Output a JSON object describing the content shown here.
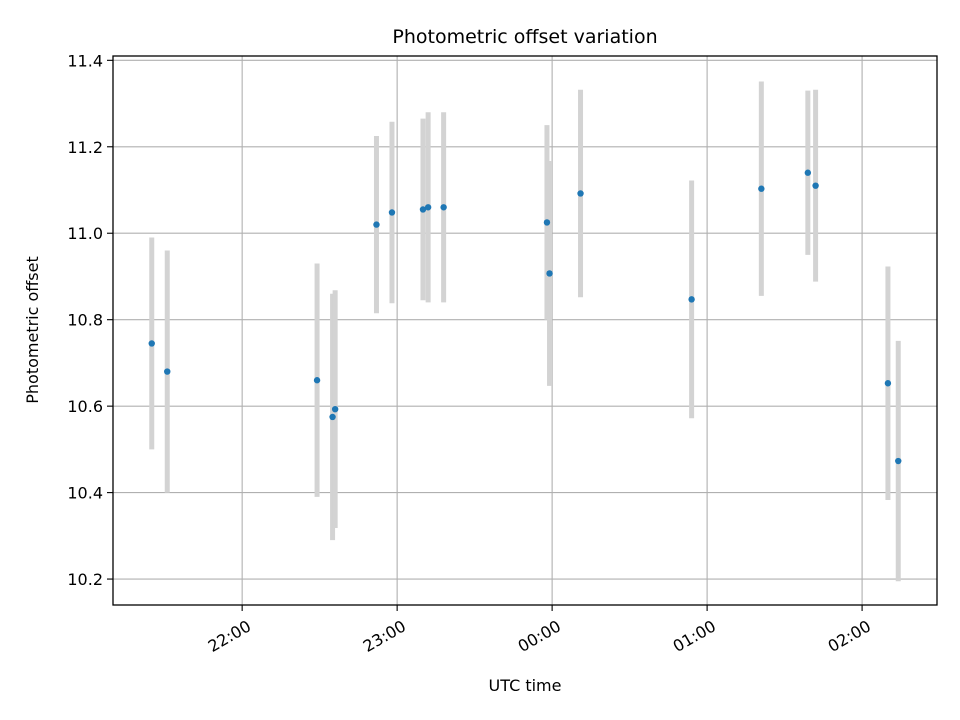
{
  "chart_data": {
    "type": "scatter",
    "title": "Photometric offset variation",
    "xlabel": "UTC time",
    "ylabel": "Photometric offset",
    "grid": true,
    "x_axis": {
      "range": [
        "21:10",
        "02:29"
      ],
      "ticks": [
        "22:00",
        "23:00",
        "00:00",
        "01:00",
        "02:00"
      ]
    },
    "y_axis": {
      "range": [
        10.14,
        11.41
      ],
      "ticks": [
        "10.2",
        "10.4",
        "10.6",
        "10.8",
        "11.0",
        "11.2",
        "11.4"
      ]
    },
    "colors": {
      "point": "#1f77b4",
      "errorbar": "#d3d3d3",
      "grid": "#b0b0b0"
    },
    "series": [
      {
        "points": [
          {
            "x": "21:25",
            "y": 10.745,
            "err": 0.245
          },
          {
            "x": "21:31",
            "y": 10.68,
            "err": 0.28
          },
          {
            "x": "22:29",
            "y": 10.66,
            "err": 0.27
          },
          {
            "x": "22:35",
            "y": 10.575,
            "err": 0.285
          },
          {
            "x": "22:36",
            "y": 10.593,
            "err": 0.275
          },
          {
            "x": "22:52",
            "y": 11.02,
            "err": 0.205
          },
          {
            "x": "22:58",
            "y": 11.048,
            "err": 0.21
          },
          {
            "x": "23:10",
            "y": 11.055,
            "err": 0.21
          },
          {
            "x": "23:12",
            "y": 11.06,
            "err": 0.22
          },
          {
            "x": "23:18",
            "y": 11.06,
            "err": 0.22
          },
          {
            "x": "23:58",
            "y": 11.025,
            "err": 0.225
          },
          {
            "x": "23:59",
            "y": 10.907,
            "err": 0.26
          },
          {
            "x": "00:11",
            "y": 11.092,
            "err": 0.24
          },
          {
            "x": "00:54",
            "y": 10.847,
            "err": 0.275
          },
          {
            "x": "01:21",
            "y": 11.103,
            "err": 0.248
          },
          {
            "x": "01:39",
            "y": 11.14,
            "err": 0.19
          },
          {
            "x": "01:42",
            "y": 11.11,
            "err": 0.222
          },
          {
            "x": "02:10",
            "y": 10.653,
            "err": 0.27
          },
          {
            "x": "02:14",
            "y": 10.473,
            "err": 0.278
          }
        ]
      }
    ]
  }
}
